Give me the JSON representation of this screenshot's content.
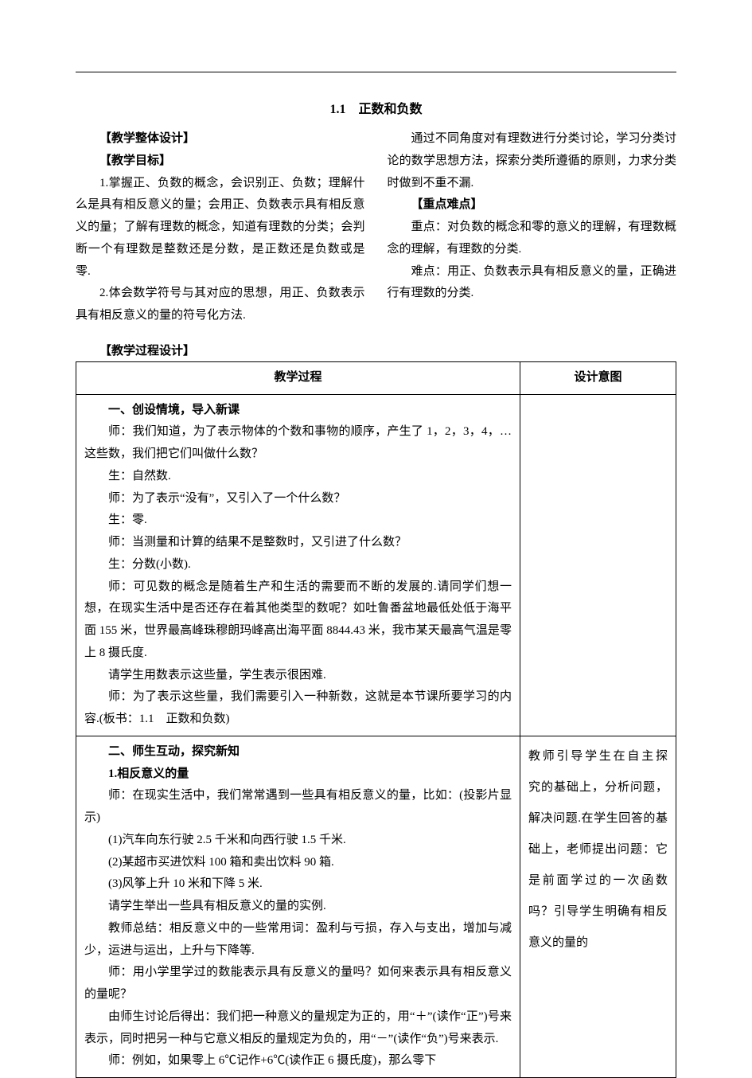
{
  "title": "1.1　正数和负数",
  "intro": {
    "heading_design": "【教学整体设计】",
    "heading_goal": "【教学目标】",
    "goal_p1": "1.掌握正、负数的概念，会识别正、负数；理解什么是具有相反意义的量；会用正、负数表示具有相反意义的量；了解有理数的概念，知道有理数的分类；会判断一个有理数是整数还是分数，是正数还是负数或是零.",
    "goal_p2": "2.体会数学符号与其对应的思想，用正、负数表示具有相反意义的量的符号化方法.",
    "goal_p3": "通过不同角度对有理数进行分类讨论，学习分类讨论的数学思想方法，探索分类所遵循的原则，力求分类时做到不重不漏.",
    "heading_keys": "【重点难点】",
    "keys_p1": "重点：对负数的概念和零的意义的理解，有理数概念的理解，有理数的分类.",
    "keys_p2": "难点：用正、负数表示具有相反意义的量，正确进行有理数的分类."
  },
  "proc_header": "【教学过程设计】",
  "table": {
    "col1": "教学过程",
    "col2": "设计意图",
    "row1": {
      "p1_bold": "一、创设情境，导入新课",
      "p2": "师：我们知道，为了表示物体的个数和事物的顺序，产生了 1，2，3，4，…这些数，我们把它们叫做什么数？",
      "p3": "生：自然数.",
      "p4": "师：为了表示“没有”，又引入了一个什么数？",
      "p5": "生：零.",
      "p6": "师：当测量和计算的结果不是整数时，又引进了什么数？",
      "p7": "生：分数(小数).",
      "p8": "师：可见数的概念是随着生产和生活的需要而不断的发展的.请同学们想一想，在现实生活中是否还存在着其他类型的数呢？如吐鲁番盆地最低处低于海平面 155 米，世界最高峰珠穆朗玛峰高出海平面 8844.43 米，我市某天最高气温是零上 8 摄氏度.",
      "p9": "请学生用数表示这些量，学生表示很困难.",
      "p10": "师：为了表示这些量，我们需要引入一种新数，这就是本节课所要学习的内容.(板书：1.1　正数和负数)"
    },
    "row2_left": {
      "p1_bold": "二、师生互动，探究新知",
      "p2_bold": "1.相反意义的量",
      "p3": "师：在现实生活中，我们常常遇到一些具有相反意义的量，比如：(投影片显示)",
      "p4": "(1)汽车向东行驶 2.5 千米和向西行驶 1.5 千米.",
      "p5": "(2)某超市买进饮料 100 箱和卖出饮料 90 箱.",
      "p6": "(3)风筝上升 10 米和下降 5 米.",
      "p7": "请学生举出一些具有相反意义的量的实例.",
      "p8": "教师总结：相反意义中的一些常用词：盈利与亏损，存入与支出，增加与减少，运进与运出，上升与下降等.",
      "p9": "师：用小学里学过的数能表示具有反意义的量吗？如何来表示具有相反意义的量呢？",
      "p10": "由师生讨论后得出：我们把一种意义的量规定为正的，用“＋”(读作“正”)号来表示，同时把另一种与它意义相反的量规定为负的，用“－”(读作“负”)号来表示.",
      "p11": "师：例如，如果零上 6℃记作+6℃(读作正 6 摄氏度)，那么零下"
    },
    "row2_right": "教师引导学生在自主探　究的基础上，分析问题，解决问题.在学生回答的基础上，老师提出问题：它是前面学过的一次函数吗？引导学生明确有相反意义的量的"
  }
}
